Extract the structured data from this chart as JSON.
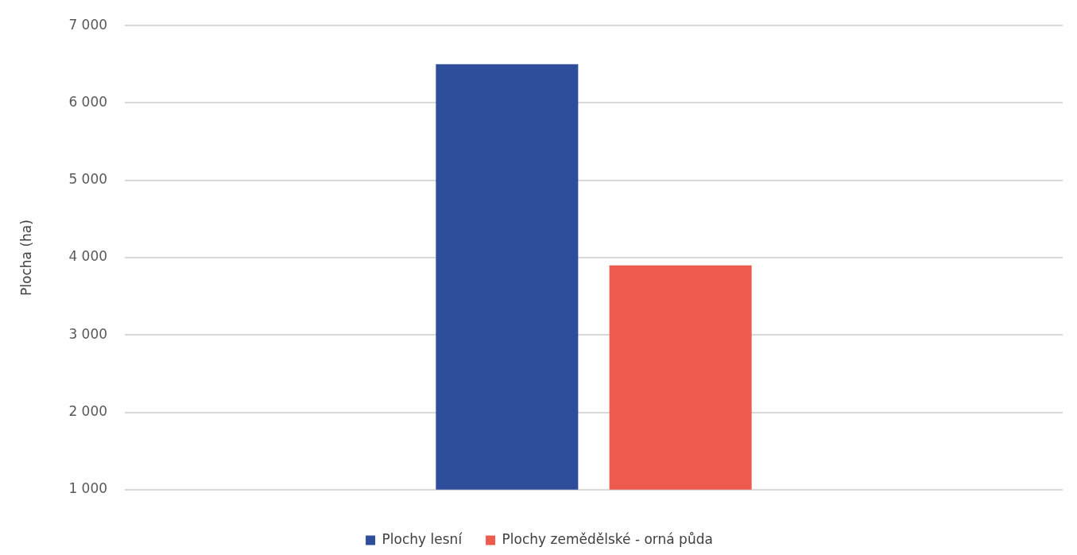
{
  "chart_data": {
    "type": "bar",
    "ylabel": "Plocha (ha)",
    "categories": [
      null
    ],
    "series": [
      {
        "name": "Plochy lesní",
        "color": "#2e4d9a",
        "values": [
          6500
        ]
      },
      {
        "name": "Plochy zemědělské - orná půda",
        "color": "#ee5a4e",
        "values": [
          3900
        ]
      }
    ],
    "ylim": [
      1000,
      7000
    ],
    "yticks": [
      {
        "value": 1000,
        "label": "1 000"
      },
      {
        "value": 2000,
        "label": "2 000"
      },
      {
        "value": 3000,
        "label": "3 000"
      },
      {
        "value": 4000,
        "label": "4 000"
      },
      {
        "value": 5000,
        "label": "5 000"
      },
      {
        "value": 6000,
        "label": "6 000"
      },
      {
        "value": 7000,
        "label": "7 000"
      }
    ],
    "grid": "y",
    "legend": "bottom"
  }
}
